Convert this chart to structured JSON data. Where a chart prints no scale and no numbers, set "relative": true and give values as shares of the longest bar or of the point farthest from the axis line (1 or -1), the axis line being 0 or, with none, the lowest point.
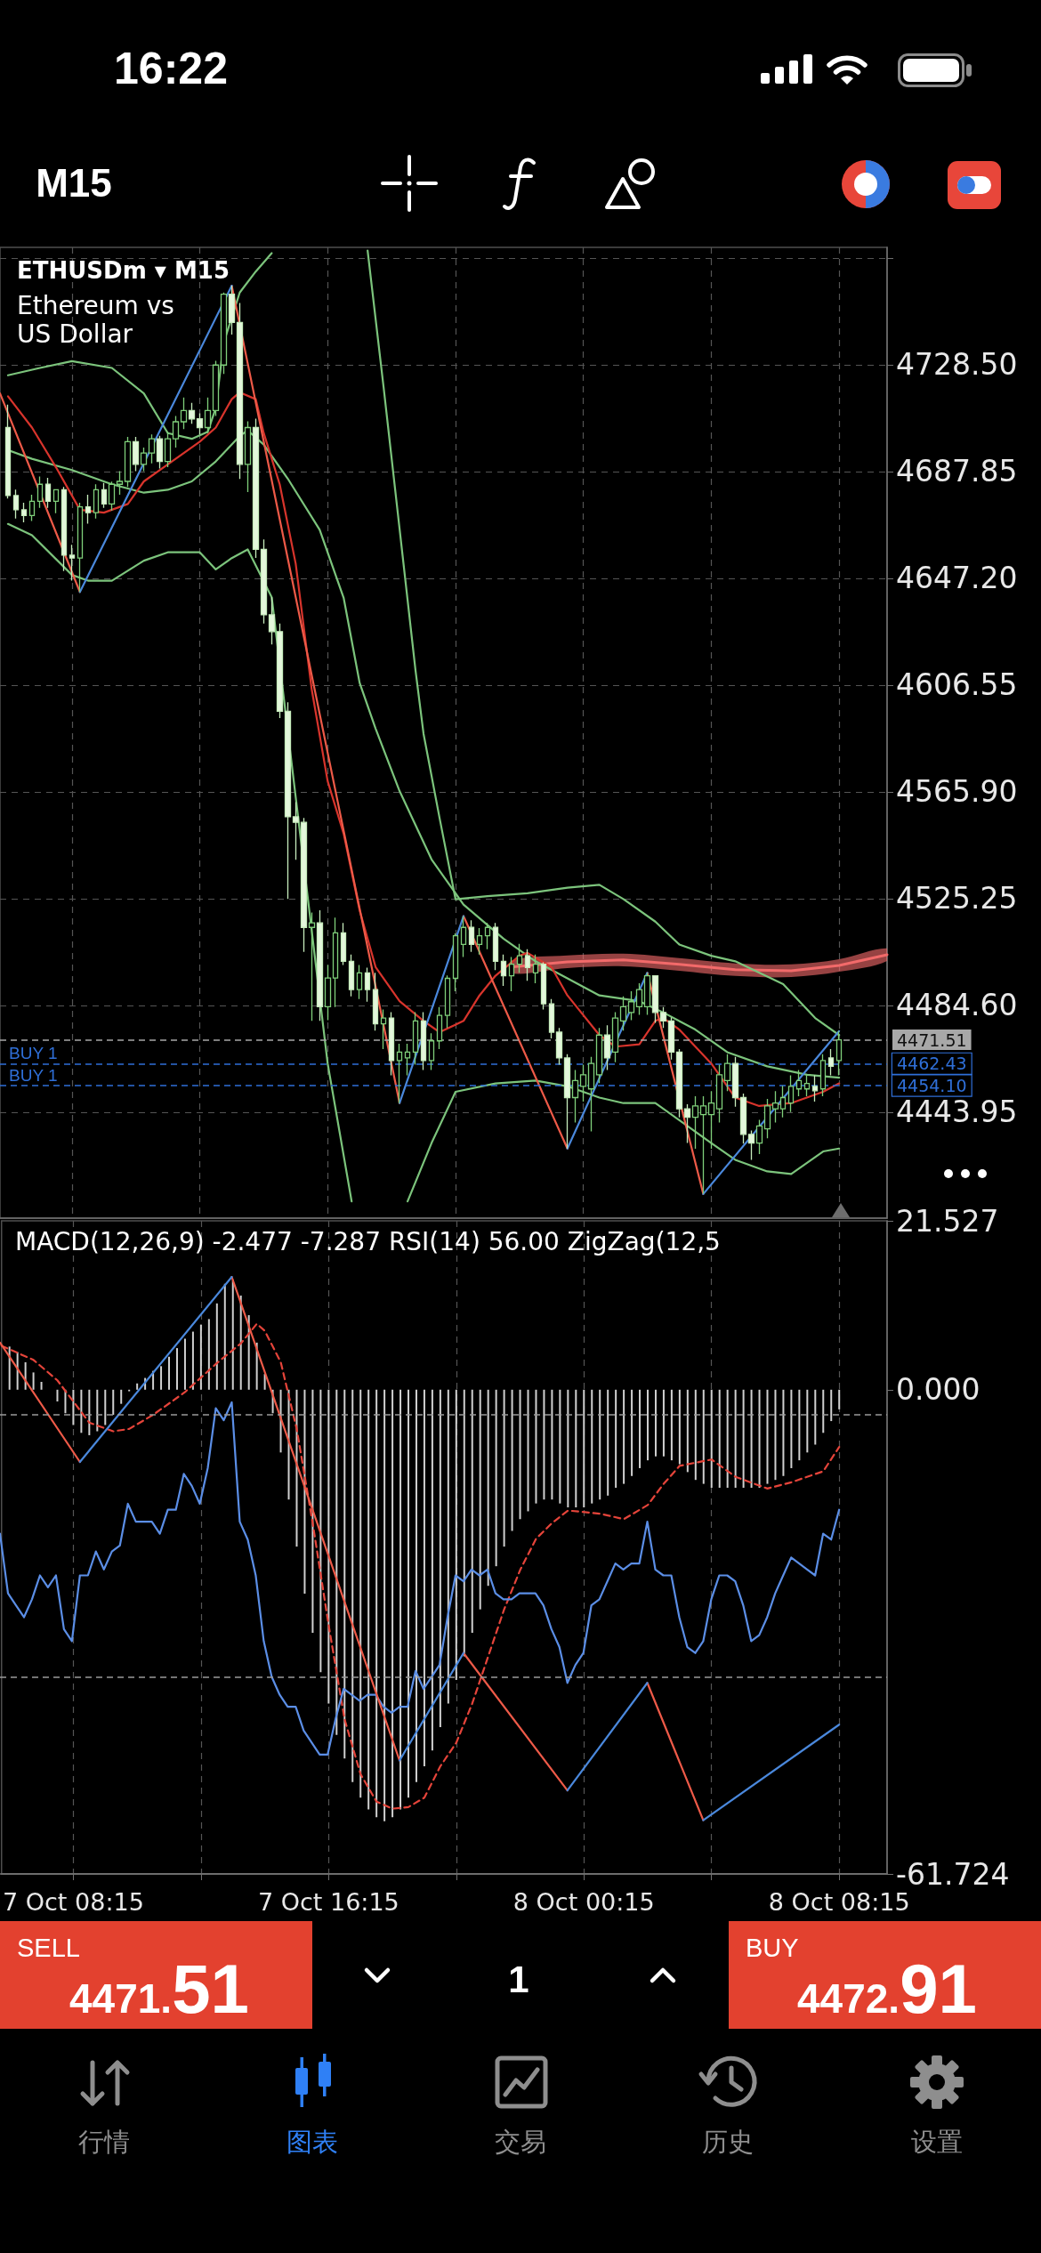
{
  "chart_data": [
    {
      "type": "candlestick",
      "title": "ETHUSDm ▾ M15",
      "subtitle": "Ethereum vs US Dollar",
      "x": [
        "--10-07T06:15",
        "--10-07T06:30",
        "--10-07T06:45",
        "--10-07T07:00",
        "--10-07T07:15",
        "--10-07T07:30",
        "--10-07T07:45",
        "--10-07T08:00",
        "--10-07T08:15",
        "--10-07T08:30",
        "--10-07T08:45",
        "--10-07T09:00",
        "--10-07T09:15",
        "--10-07T09:30",
        "--10-07T09:45",
        "--10-07T10:00",
        "--10-07T10:15",
        "--10-07T10:30",
        "--10-07T10:45",
        "--10-07T11:00",
        "--10-07T11:15",
        "--10-07T11:30",
        "--10-07T11:45",
        "--10-07T12:00",
        "--10-07T12:15",
        "--10-07T12:30",
        "--10-07T12:45",
        "--10-07T13:00",
        "--10-07T13:15",
        "--10-07T13:30",
        "--10-07T13:45",
        "--10-07T14:00",
        "--10-07T14:15",
        "--10-07T14:30",
        "--10-07T14:45",
        "--10-07T15:00",
        "--10-07T15:15",
        "--10-07T15:30",
        "--10-07T15:45",
        "--10-07T16:00",
        "--10-07T16:15",
        "--10-07T16:30",
        "--10-07T16:45",
        "--10-07T17:00",
        "--10-07T17:15",
        "--10-07T17:30",
        "--10-07T17:45",
        "--10-07T18:00",
        "--10-07T18:15",
        "--10-07T18:30",
        "--10-07T18:45",
        "--10-07T19:00",
        "--10-07T19:15",
        "--10-07T19:30",
        "--10-07T19:45",
        "--10-07T20:00",
        "--10-07T20:15",
        "--10-07T20:30",
        "--10-07T20:45",
        "--10-07T21:00",
        "--10-07T21:15",
        "--10-07T21:30",
        "--10-07T21:45",
        "--10-07T22:00",
        "--10-07T22:15",
        "--10-07T22:30",
        "--10-07T22:45",
        "--10-07T23:00",
        "--10-07T23:15",
        "--10-07T23:30",
        "--10-07T23:45",
        "--10-08T00:00",
        "--10-08T00:15",
        "--10-08T00:30",
        "--10-08T00:45",
        "--10-08T01:00",
        "--10-08T01:15",
        "--10-08T01:30",
        "--10-08T01:45",
        "--10-08T02:00",
        "--10-08T02:15",
        "--10-08T02:30",
        "--10-08T02:45",
        "--10-08T03:00",
        "--10-08T03:15",
        "--10-08T03:30",
        "--10-08T03:45",
        "--10-08T04:00",
        "--10-08T04:15",
        "--10-08T04:30",
        "--10-08T04:45",
        "--10-08T05:00",
        "--10-08T05:15",
        "--10-08T05:30",
        "--10-08T05:45",
        "--10-08T06:00",
        "--10-08T06:15",
        "--10-08T06:30",
        "--10-08T06:45",
        "--10-08T07:00",
        "--10-08T07:15",
        "--10-08T07:30",
        "--10-08T07:45",
        "--10-08T08:00",
        "--10-08T08:15"
      ],
      "ohlc": [
        [
          4704.6,
          4713.3,
          4677.6,
          4678.7
        ],
        [
          4678.7,
          4681.0,
          4670.0,
          4673.3
        ],
        [
          4673.3,
          4676.0,
          4668.5,
          4671.1
        ],
        [
          4671.1,
          4679.0,
          4669.0,
          4676.5
        ],
        [
          4676.5,
          4686.0,
          4674.0,
          4683.0
        ],
        [
          4683.0,
          4685.5,
          4674.0,
          4676.5
        ],
        [
          4676.5,
          4681.0,
          4672.0,
          4680.9
        ],
        [
          4680.9,
          4682.0,
          4650.0,
          4656.0
        ],
        [
          4656.0,
          4660.0,
          4646.3,
          4654.9
        ],
        [
          4654.9,
          4676.0,
          4642.0,
          4674.4
        ],
        [
          4674.4,
          4679.0,
          4668.0,
          4672.2
        ],
        [
          4672.2,
          4683.0,
          4670.0,
          4680.9
        ],
        [
          4680.9,
          4683.5,
          4674.0,
          4675.5
        ],
        [
          4675.5,
          4684.0,
          4673.0,
          4683.0
        ],
        [
          4683.0,
          4688.0,
          4679.0,
          4684.1
        ],
        [
          4684.1,
          4701.0,
          4682.0,
          4699.2
        ],
        [
          4699.2,
          4701.0,
          4688.0,
          4690.6
        ],
        [
          4690.6,
          4697.0,
          4688.0,
          4694.9
        ],
        [
          4694.9,
          4702.0,
          4691.0,
          4700.3
        ],
        [
          4700.3,
          4701.5,
          4689.0,
          4691.7
        ],
        [
          4691.7,
          4703.0,
          4689.5,
          4700.3
        ],
        [
          4700.3,
          4709.0,
          4697.0,
          4706.8
        ],
        [
          4706.8,
          4716.0,
          4704.0,
          4711.1
        ],
        [
          4711.1,
          4714.0,
          4706.0,
          4707.9
        ],
        [
          4707.9,
          4710.0,
          4702.0,
          4704.6
        ],
        [
          4704.6,
          4716.0,
          4702.5,
          4711.1
        ],
        [
          4711.1,
          4730.0,
          4709.0,
          4728.4
        ],
        [
          4728.4,
          4756.0,
          4725.0,
          4755.4
        ],
        [
          4755.4,
          4758.6,
          4740.0,
          4744.6
        ],
        [
          4744.6,
          4752.0,
          4685.0,
          4690.6
        ],
        [
          4690.6,
          4707.0,
          4680.0,
          4704.6
        ],
        [
          4704.6,
          4708.0,
          4655.0,
          4658.2
        ],
        [
          4658.2,
          4662.0,
          4630.0,
          4633.3
        ],
        [
          4633.3,
          4640.0,
          4622.0,
          4626.9
        ],
        [
          4626.9,
          4630.0,
          4594.0,
          4596.6
        ],
        [
          4596.6,
          4600.0,
          4525.1,
          4556.4
        ],
        [
          4556.4,
          4562.0,
          4540.0,
          4554.3
        ],
        [
          4554.3,
          4556.0,
          4505.0,
          4514.3
        ],
        [
          4514.3,
          4520.0,
          4478.7,
          4516.0
        ],
        [
          4516.0,
          4520.8,
          4478.7,
          4484.1
        ],
        [
          4484.1,
          4500.0,
          4479.0,
          4495.0
        ],
        [
          4495.0,
          4518.0,
          4484.0,
          4512.2
        ],
        [
          4512.2,
          4516.0,
          4500.0,
          4501.4
        ],
        [
          4501.4,
          4504.0,
          4488.0,
          4490.6
        ],
        [
          4490.6,
          4500.0,
          4487.0,
          4497.0
        ],
        [
          4497.0,
          4499.0,
          4486.0,
          4490.6
        ],
        [
          4490.6,
          4497.0,
          4475.0,
          4477.6
        ],
        [
          4477.6,
          4483.0,
          4468.0,
          4479.8
        ],
        [
          4479.8,
          4482.0,
          4458.0,
          4463.6
        ],
        [
          4463.6,
          4470.0,
          4447.4,
          4466.8
        ],
        [
          4464.6,
          4470.0,
          4458.0,
          4466.8
        ],
        [
          4466.8,
          4482.0,
          4462.0,
          4478.7
        ],
        [
          4478.7,
          4482.0,
          4460.0,
          4463.6
        ],
        [
          4463.6,
          4474.0,
          4460.0,
          4471.1
        ],
        [
          4471.1,
          4484.0,
          4468.0,
          4480.8
        ],
        [
          4480.8,
          4496.0,
          4476.0,
          4494.9
        ],
        [
          4494.9,
          4512.0,
          4490.0,
          4511.1
        ],
        [
          4507.8,
          4518.6,
          4503.0,
          4514.3
        ],
        [
          4514.3,
          4517.0,
          4505.0,
          4507.8
        ],
        [
          4507.8,
          4514.0,
          4504.0,
          4511.1
        ],
        [
          4511.1,
          4516.0,
          4506.0,
          4514.3
        ],
        [
          4514.3,
          4516.0,
          4498.0,
          4501.4
        ],
        [
          4501.4,
          4504.0,
          4492.0,
          4495.9
        ],
        [
          4495.9,
          4503.0,
          4490.0,
          4500.3
        ],
        [
          4500.3,
          4508.0,
          4497.0,
          4503.5
        ],
        [
          4503.5,
          4506.0,
          4494.0,
          4499.0
        ],
        [
          4497.0,
          4504.0,
          4493.0,
          4500.3
        ],
        [
          4500.3,
          4501.0,
          4483.0,
          4485.2
        ],
        [
          4485.2,
          4487.0,
          4472.0,
          4474.4
        ],
        [
          4474.4,
          4476.0,
          4462.0,
          4464.6
        ],
        [
          4464.6,
          4466.0,
          4430.1,
          4449.5
        ],
        [
          4449.5,
          4460.0,
          4440.0,
          4456.0
        ],
        [
          4453.8,
          4462.0,
          4448.0,
          4458.2
        ],
        [
          4452.8,
          4465.0,
          4436.6,
          4462.5
        ],
        [
          4458.2,
          4476.0,
          4455.0,
          4473.3
        ],
        [
          4473.3,
          4477.0,
          4460.0,
          4464.6
        ],
        [
          4466.8,
          4482.0,
          4463.0,
          4479.8
        ],
        [
          4478.7,
          4488.0,
          4475.0,
          4484.1
        ],
        [
          4481.9,
          4490.0,
          4479.0,
          4486.0
        ],
        [
          4484.1,
          4493.0,
          4481.0,
          4490.6
        ],
        [
          4484.1,
          4497.0,
          4481.0,
          4495.9
        ],
        [
          4495.9,
          4496.0,
          4478.0,
          4481.9
        ],
        [
          4481.9,
          4484.0,
          4476.0,
          4478.7
        ],
        [
          4478.7,
          4480.0,
          4464.0,
          4466.8
        ],
        [
          4466.8,
          4468.0,
          4442.0,
          4445.2
        ],
        [
          4445.2,
          4447.0,
          4432.2,
          4442.0
        ],
        [
          4442.0,
          4450.0,
          4430.0,
          4446.3
        ],
        [
          4443.0,
          4450.0,
          4412.8,
          4446.3
        ],
        [
          4443.0,
          4452.0,
          4430.0,
          4447.4
        ],
        [
          4445.2,
          4462.0,
          4440.0,
          4458.2
        ],
        [
          4456.0,
          4466.0,
          4452.0,
          4462.5
        ],
        [
          4462.5,
          4465.0,
          4446.0,
          4449.5
        ],
        [
          4449.5,
          4451.0,
          4432.0,
          4435.5
        ],
        [
          4435.5,
          4437.0,
          4425.8,
          4432.2
        ],
        [
          4432.2,
          4441.0,
          4428.0,
          4438.7
        ],
        [
          4437.6,
          4449.0,
          4434.0,
          4446.3
        ],
        [
          4445.2,
          4452.0,
          4440.0,
          4447.4
        ],
        [
          4445.2,
          4454.0,
          4442.0,
          4449.5
        ],
        [
          4447.4,
          4458.0,
          4444.0,
          4453.8
        ],
        [
          4452.8,
          4460.0,
          4450.0,
          4456.0
        ],
        [
          4452.8,
          4458.0,
          4450.0,
          4454.9
        ],
        [
          4453.8,
          4458.0,
          4448.0,
          4452.1
        ],
        [
          4452.8,
          4466.0,
          4450.0,
          4463.6
        ],
        [
          4464.6,
          4468.0,
          4458.0,
          4461.4
        ],
        [
          4463.6,
          4474.8,
          4458.0,
          4471.51
        ]
      ],
      "series": [
        {
          "type": "line",
          "color": "#7cc47c",
          "x": [
            "--10-07T06:15",
            "--10-07T07:15",
            "--10-07T08:15",
            "--10-07T09:30",
            "--10-07T10:30",
            "--10-07T11:15",
            "--10-07T12:00",
            "--10-07T12:30",
            "--10-07T12:45",
            "--10-07T13:00",
            "--10-07T13:30",
            "--10-07T14:00",
            "--10-07T14:30",
            "--10-07T16:00",
            "--10-07T17:30",
            "--10-07T18:00",
            "--10-07T18:30",
            "--10-07T19:00",
            "--10-07T19:15",
            "--10-07T19:45",
            "--10-07T20:15",
            "--10-07T21:15",
            "--10-07T22:30",
            "--10-07T23:45",
            "--10-08T00:45",
            "--10-08T01:30",
            "--10-08T02:30",
            "--10-08T03:15",
            "--10-08T04:15",
            "--10-08T05:00",
            "--10-08T06:30",
            "--10-08T07:30",
            "--10-08T08:15"
          ],
          "values": [
            4724.5,
            4727.3,
            4729.9,
            4727.3,
            4717.6,
            4702.5,
            4700.3,
            4703.0,
            4712.0,
            4737.0,
            4756.0,
            4764.0,
            4771.0,
            null,
            4772.0,
            4720.0,
            4666.0,
            4612.0,
            4588.0,
            4556.0,
            4525.0,
            4526.2,
            4527.3,
            4529.4,
            4530.5,
            4525.1,
            4516.5,
            4507.8,
            4503.5,
            4501.4,
            4492.7,
            4479.8,
            4473.3
          ]
        },
        {
          "type": "line",
          "color": "#7cc47c",
          "x": [
            "--10-07T06:15",
            "--10-07T07:00",
            "--10-07T08:15",
            "--10-07T09:30",
            "--10-07T10:30",
            "--10-07T11:15",
            "--10-07T12:00",
            "--10-07T12:45",
            "--10-07T13:30",
            "--10-07T13:45",
            "--10-07T14:15",
            "--10-07T15:00",
            "--10-07T16:00",
            "--10-07T16:45",
            "--10-07T17:15",
            "--10-07T17:45",
            "--10-07T18:30",
            "--10-07T19:30",
            "--10-07T20:30",
            "--10-07T21:45",
            "--10-07T22:45",
            "--10-07T23:45",
            "--10-08T00:45",
            "--10-08T02:00",
            "--10-08T02:45",
            "--10-08T03:45",
            "--10-08T04:45",
            "--10-08T06:00",
            "--10-08T07:15",
            "--10-08T08:15"
          ],
          "values": [
            4696.0,
            4692.7,
            4688.4,
            4683.0,
            4679.8,
            4680.9,
            4684.1,
            4691.7,
            4701.4,
            4703.5,
            4698.1,
            4685.2,
            4665.7,
            4639.8,
            4607.4,
            4590.0,
            4566.2,
            4540.2,
            4523.0,
            4510.0,
            4501.4,
            4494.9,
            4488.4,
            4486.2,
            4481.9,
            4475.4,
            4466.8,
            4461.4,
            4458.2,
            4457.1
          ]
        },
        {
          "type": "line",
          "color": "#7cc47c",
          "x": [
            "--10-07T06:15",
            "--10-07T07:00",
            "--10-07T08:15",
            "--10-07T08:45",
            "--10-07T09:30",
            "--10-07T10:30",
            "--10-07T11:15",
            "--10-07T12:15",
            "--10-07T12:45",
            "--10-07T13:15",
            "--10-07T13:45",
            "--10-07T14:30",
            "--10-07T16:15",
            "--10-07T17:00",
            "--10-07T17:45",
            "--10-07T18:45",
            "--10-07T19:30",
            "--10-07T20:15",
            "--10-07T21:30",
            "--10-07T22:45",
            "--10-07T23:45",
            "--10-08T00:45",
            "--10-08T01:30",
            "--10-08T02:30",
            "--10-08T03:15",
            "--10-08T04:15",
            "--10-08T05:00",
            "--10-08T06:00",
            "--10-08T06:45",
            "--10-08T07:45",
            "--10-08T08:15"
          ],
          "values": [
            4667.9,
            4663.6,
            4648.5,
            4646.3,
            4646.3,
            4653.9,
            4657.1,
            4657.1,
            4650.6,
            4654.9,
            4658.2,
            4640.0,
            4462.5,
            4410.0,
            null,
            4410.0,
            4432.2,
            4451.7,
            4454.9,
            4456.0,
            4453.8,
            4449.5,
            4447.4,
            4447.4,
            4440.9,
            4432.2,
            4425.8,
            4421.4,
            4420.4,
            4429.0,
            4430.1
          ]
        },
        {
          "type": "line",
          "color": "#d8342c",
          "x": [
            "--10-07T06:15",
            "--10-07T07:00",
            "--10-07T07:45",
            "--10-07T08:30",
            "--10-07T09:15",
            "--10-07T10:00",
            "--10-07T10:30",
            "--10-07T11:15",
            "--10-07T12:15",
            "--10-07T12:45",
            "--10-07T13:15",
            "--10-07T13:30",
            "--10-07T14:00",
            "--10-07T14:15",
            "--10-07T14:45",
            "--10-07T15:15",
            "--10-07T15:45",
            "--10-07T16:15",
            "--10-07T16:45",
            "--10-07T17:15",
            "--10-07T17:45",
            "--10-07T18:30",
            "--10-07T19:15",
            "--10-07T19:45",
            "--10-07T20:30",
            "--10-07T21:00",
            "--10-07T21:30",
            "--10-07T22:15",
            "--10-07T22:30",
            "--10-07T23:15",
            "--10-07T23:45",
            "--10-08T00:45",
            "--10-08T01:15",
            "--10-08T02:00",
            "--10-08T02:30",
            "--10-08T02:45",
            "--10-08T03:15",
            "--10-08T04:15",
            "--10-08T05:00",
            "--10-08T05:45",
            "--10-08T06:45",
            "--10-08T07:45",
            "--10-08T08:15"
          ],
          "values": [
            4716.5,
            4704.6,
            4689.5,
            4673.3,
            4672.2,
            4675.5,
            4684.1,
            4690.6,
            4699.2,
            4704.6,
            4715.4,
            4718.0,
            4715.4,
            4702.5,
            4683.0,
            4652.8,
            4605.0,
            4570.0,
            4550.0,
            4520.8,
            4499.2,
            4486.2,
            4478.7,
            4474.4,
            4478.7,
            4488.4,
            4495.9,
            4503.5,
            4504.6,
            4499.2,
            4488.4,
            4473.3,
            4468.9,
            4469.8,
            4478.7,
            4479.8,
            4475.4,
            4462.5,
            4449.5,
            4446.3,
            4447.4,
            4451.7,
            4454.9
          ]
        },
        {
          "type": "line",
          "color": "#ee5a48",
          "x": [
            "--10-07T06:00",
            "--10-07T08:30",
            "--10-07T10:45",
            "--10-07T13:15",
            "--10-07T18:30",
            "--10-07T19:30",
            "--10-07T20:30",
            "--10-07T23:45",
            "--10-08T01:00",
            "--10-08T02:15",
            "--10-08T04:00"
          ],
          "values": [
            4717.6,
            4642.0,
            null,
            4758.6,
            4447.4,
            null,
            4518.6,
            4430.1,
            null,
            4497.0,
            4412.8
          ]
        },
        {
          "type": "line",
          "color": "#4a88dc",
          "x": [
            "--10-07T08:30",
            "--10-07T13:15",
            "--10-07T15:45",
            "--10-07T18:30",
            "--10-07T20:30",
            "--10-07T22:00",
            "--10-07T23:45",
            "--10-08T02:15",
            "--10-08T03:15",
            "--10-08T04:00",
            "--10-08T08:15"
          ],
          "values": [
            4642.0,
            4758.6,
            null,
            4447.4,
            4518.6,
            null,
            4430.1,
            4497.0,
            null,
            4412.8,
            4474.8
          ]
        },
        {
          "type": "line",
          "color": "#f26a6a",
          "x": [
            "--10-07T22:00",
            "--10-07T23:45",
            "--10-08T01:30",
            "--10-08T03:15",
            "--10-08T05:00",
            "--10-08T06:45",
            "--10-08T08:15",
            "--10-08T09:45"
          ],
          "values": [
            4499.2,
            4501.2,
            4501.9,
            4500.2,
            4498.2,
            4497.8,
            4499.8,
            4503.9
          ],
          "lower": [
            4496.8,
            4498.8,
            4499.5,
            4497.8,
            4495.8,
            4495.4,
            4497.4,
            4501.5
          ],
          "upper": [
            4501.6,
            4503.6,
            4504.3,
            4502.6,
            4500.6,
            4500.2,
            4502.2,
            4506.3
          ]
        }
      ],
      "xlim": [
        "--10-07T06:00",
        "--10-08T09:45"
      ],
      "xticks": [
        {
          "value": "--10-07T08:15",
          "label": null
        },
        {
          "value": "--10-07T12:15",
          "label": null
        },
        {
          "value": "--10-07T16:15",
          "label": null
        },
        {
          "value": "--10-07T20:15",
          "label": null
        },
        {
          "value": "--10-08T00:15",
          "label": null
        },
        {
          "value": "--10-08T04:15",
          "label": null
        },
        {
          "value": "--10-08T08:15",
          "label": null
        }
      ],
      "ylim": [
        4403.6,
        4773.2
      ],
      "yticks": [
        {
          "value": 4769.15,
          "label": null
        },
        {
          "value": 4728.5,
          "label": "4728.50"
        },
        4687.85,
        {
          "value": 4647.2,
          "label": "4647.20"
        },
        4606.55,
        {
          "value": 4565.9,
          "label": "4565.90"
        },
        4525.25,
        {
          "value": 4484.6,
          "label": "4484.60"
        },
        4443.95
      ],
      "grid": true,
      "tick_labels": "y",
      "marker": "none",
      "ref_lines": [
        {
          "axis": "y",
          "value": 4471.51,
          "label": "4471.51",
          "color": "#a8a8a8",
          "line_style": "dashed"
        },
        {
          "axis": "y",
          "value": 4462.43,
          "label": "4462.43",
          "color": "#2f6fd8",
          "line_style": "dashed"
        },
        {
          "axis": "y",
          "value": 4454.1,
          "label": "4454.10",
          "color": "#2f6fd8",
          "line_style": "dashed"
        }
      ],
      "annotations": [
        {
          "text": "BUY 1",
          "x": "--10-07T06:00",
          "y": 4462.43
        },
        {
          "text": "BUY 1",
          "x": "--10-07T06:00",
          "y": 4454.1
        }
      ]
    },
    {
      "type": "bar",
      "title": "MACD(12,26,9) -2.477 -7.287 RSI(14) 56.00 ZigZag(12,5",
      "x": [
        "--10-07T06:15",
        "--10-07T06:30",
        "--10-07T06:45",
        "--10-07T07:00",
        "--10-07T07:15",
        "--10-07T07:30",
        "--10-07T07:45",
        "--10-07T08:00",
        "--10-07T08:15",
        "--10-07T08:30",
        "--10-07T08:45",
        "--10-07T09:00",
        "--10-07T09:15",
        "--10-07T09:30",
        "--10-07T09:45",
        "--10-07T10:00",
        "--10-07T10:15",
        "--10-07T10:30",
        "--10-07T10:45",
        "--10-07T11:00",
        "--10-07T11:15",
        "--10-07T11:30",
        "--10-07T11:45",
        "--10-07T12:00",
        "--10-07T12:15",
        "--10-07T12:30",
        "--10-07T12:45",
        "--10-07T13:00",
        "--10-07T13:15",
        "--10-07T13:30",
        "--10-07T13:45",
        "--10-07T14:00",
        "--10-07T14:15",
        "--10-07T14:30",
        "--10-07T14:45",
        "--10-07T15:00",
        "--10-07T15:15",
        "--10-07T15:30",
        "--10-07T15:45",
        "--10-07T16:00",
        "--10-07T16:15",
        "--10-07T16:30",
        "--10-07T16:45",
        "--10-07T17:00",
        "--10-07T17:15",
        "--10-07T17:30",
        "--10-07T17:45",
        "--10-07T18:00",
        "--10-07T18:15",
        "--10-07T18:30",
        "--10-07T18:45",
        "--10-07T19:00",
        "--10-07T19:15",
        "--10-07T19:30",
        "--10-07T19:45",
        "--10-07T20:00",
        "--10-07T20:15",
        "--10-07T20:30",
        "--10-07T20:45",
        "--10-07T21:00",
        "--10-07T21:15",
        "--10-07T21:30",
        "--10-07T21:45",
        "--10-07T22:00",
        "--10-07T22:15",
        "--10-07T22:30",
        "--10-07T22:45",
        "--10-07T23:00",
        "--10-07T23:15",
        "--10-07T23:30",
        "--10-07T23:45",
        "--10-08T00:00",
        "--10-08T00:15",
        "--10-08T00:30",
        "--10-08T00:45",
        "--10-08T01:00",
        "--10-08T01:15",
        "--10-08T01:30",
        "--10-08T01:45",
        "--10-08T02:00",
        "--10-08T02:15",
        "--10-08T02:30",
        "--10-08T02:45",
        "--10-08T03:00",
        "--10-08T03:15",
        "--10-08T03:30",
        "--10-08T03:45",
        "--10-08T04:00",
        "--10-08T04:15",
        "--10-08T04:30",
        "--10-08T04:45",
        "--10-08T05:00",
        "--10-08T05:15",
        "--10-08T05:30",
        "--10-08T05:45",
        "--10-08T06:00",
        "--10-08T06:15",
        "--10-08T06:30",
        "--10-08T06:45",
        "--10-08T07:00",
        "--10-08T07:15",
        "--10-08T07:30",
        "--10-08T07:45",
        "--10-08T08:00",
        "--10-08T08:15"
      ],
      "series": [
        {
          "color": "#d0d0d0",
          "values": [
            5.5,
            4.8,
            3.5,
            2.2,
            1.0,
            0.0,
            -1.5,
            -3.0,
            -4.5,
            -5.5,
            -5.8,
            -5.3,
            -4.5,
            -3.2,
            -1.8,
            -0.2,
            0.8,
            1.5,
            2.4,
            3.0,
            4.2,
            5.3,
            6.5,
            7.4,
            8.3,
            9.0,
            11.0,
            13.5,
            14.0,
            12.0,
            9.5,
            6.0,
            2.0,
            -3.0,
            -8.0,
            -14.0,
            -20.0,
            -26.0,
            -31.0,
            -36.0,
            -40.0,
            -44.0,
            -47.0,
            -50.0,
            -52.0,
            -53.5,
            -54.5,
            -55.0,
            -54.5,
            -53.5,
            -52.0,
            -50.0,
            -48.0,
            -46.0,
            -43.0,
            -40.0,
            -37.0,
            -34.0,
            -31.0,
            -28.0,
            -25.0,
            -22.5,
            -20.0,
            -18.0,
            -16.5,
            -15.5,
            -14.5,
            -14.0,
            -14.0,
            -14.5,
            -15.0,
            -15.0,
            -15.0,
            -14.5,
            -14.0,
            -13.5,
            -12.5,
            -12.0,
            -11.0,
            -10.0,
            -9.0,
            -8.5,
            -8.5,
            -9.0,
            -9.5,
            -10.5,
            -11.5,
            -12.0,
            -12.5,
            -12.5,
            -12.5,
            -12.5,
            -12.5,
            -12.5,
            -12.5,
            -12.0,
            -11.5,
            -11.0,
            -10.0,
            -9.0,
            -8.0,
            -7.0,
            -5.5,
            -4.0,
            -2.5
          ]
        },
        {
          "type": "line",
          "color": "#e5443a",
          "line_style": "dashed",
          "x": [
            "--10-07T06:00",
            "--10-07T07:00",
            "--10-07T07:45",
            "--10-07T08:45",
            "--10-07T09:30",
            "--10-07T10:00",
            "--10-07T10:45",
            "--10-07T11:45",
            "--10-07T12:45",
            "--10-07T13:30",
            "--10-07T14:00",
            "--10-07T14:15",
            "--10-07T14:45",
            "--10-07T15:15",
            "--10-07T15:45",
            "--10-07T16:15",
            "--10-07T16:45",
            "--10-07T17:15",
            "--10-07T17:45",
            "--10-07T18:15",
            "--10-07T18:45",
            "--10-07T19:15",
            "--10-07T19:45",
            "--10-07T20:15",
            "--10-07T20:45",
            "--10-07T21:15",
            "--10-07T21:45",
            "--10-07T22:15",
            "--10-07T22:45",
            "--10-07T23:15",
            "--10-07T23:45",
            "--10-08T00:45",
            "--10-08T01:30",
            "--10-08T02:15",
            "--10-08T02:45",
            "--10-08T03:15",
            "--10-08T04:15",
            "--10-08T05:00",
            "--10-08T06:00",
            "--10-08T06:45",
            "--10-08T07:45",
            "--10-08T08:15"
          ],
          "values": [
            5.6,
            3.8,
            1.2,
            -4.2,
            -5.3,
            -5.0,
            -3.2,
            -0.3,
            3.4,
            5.9,
            8.4,
            7.5,
            3.5,
            -5.0,
            -17.0,
            -30.0,
            -42.0,
            -49.0,
            -52.5,
            -53.4,
            -53.2,
            -52.0,
            -48.0,
            -45.0,
            -40.0,
            -34.0,
            -28.0,
            -23.0,
            -19.0,
            -17.0,
            -15.4,
            -15.8,
            -16.5,
            -14.7,
            -12.0,
            -9.7,
            -8.9,
            -11.1,
            -12.6,
            -11.8,
            -10.4,
            -7.3
          ]
        }
      ],
      "xlim": [
        "--10-07T06:00",
        "--10-08T09:45"
      ],
      "xticks": [
        {
          "value": "--10-07T08:15",
          "label": "7 Oct 08:15"
        },
        {
          "value": "--10-07T12:15",
          "label": null
        },
        {
          "value": "--10-07T16:15",
          "label": "7 Oct 16:15"
        },
        {
          "value": "--10-07T20:15",
          "label": null
        },
        {
          "value": "--10-08T00:15",
          "label": "8 Oct 00:15"
        },
        {
          "value": "--10-08T04:15",
          "label": null
        },
        {
          "value": "--10-08T08:15",
          "label": "8 Oct 08:15"
        }
      ],
      "ylim": [
        -61.724,
        21.527
      ],
      "yticks": [
        21.527,
        {
          "value": 0,
          "label": "0.000"
        },
        -61.724
      ],
      "grid": "x",
      "marker": "none"
    },
    {
      "type": "line",
      "relative": true,
      "marker": "none",
      "tick_labels": false,
      "x": [
        "--10-07T06:00",
        "--10-07T06:15",
        "--10-07T06:30",
        "--10-07T06:45",
        "--10-07T07:00",
        "--10-07T07:15",
        "--10-07T07:30",
        "--10-07T07:45",
        "--10-07T08:00",
        "--10-07T08:15",
        "--10-07T08:30",
        "--10-07T08:45",
        "--10-07T09:00",
        "--10-07T09:15",
        "--10-07T09:30",
        "--10-07T09:45",
        "--10-07T10:00",
        "--10-07T10:15",
        "--10-07T10:30",
        "--10-07T10:45",
        "--10-07T11:00",
        "--10-07T11:15",
        "--10-07T11:30",
        "--10-07T11:45",
        "--10-07T12:00",
        "--10-07T12:15",
        "--10-07T12:30",
        "--10-07T12:45",
        "--10-07T13:00",
        "--10-07T13:15",
        "--10-07T13:30",
        "--10-07T13:45",
        "--10-07T14:00",
        "--10-07T14:15",
        "--10-07T14:30",
        "--10-07T14:45",
        "--10-07T15:00",
        "--10-07T15:15",
        "--10-07T15:30",
        "--10-07T15:45",
        "--10-07T16:00",
        "--10-07T16:15",
        "--10-07T16:30",
        "--10-07T16:45",
        "--10-07T17:00",
        "--10-07T17:15",
        "--10-07T17:30",
        "--10-07T17:45",
        "--10-07T18:00",
        "--10-07T18:15",
        "--10-07T18:30",
        "--10-07T18:45",
        "--10-07T19:00",
        "--10-07T19:15",
        "--10-07T19:30",
        "--10-07T19:45",
        "--10-07T20:00",
        "--10-07T20:15",
        "--10-07T20:30",
        "--10-07T20:45",
        "--10-07T21:00",
        "--10-07T21:15",
        "--10-07T21:30",
        "--10-07T21:45",
        "--10-07T22:00",
        "--10-07T22:15",
        "--10-07T22:30",
        "--10-07T22:45",
        "--10-07T23:00",
        "--10-07T23:15",
        "--10-07T23:30",
        "--10-07T23:45",
        "--10-08T00:00",
        "--10-08T00:15",
        "--10-08T00:30",
        "--10-08T00:45",
        "--10-08T01:00",
        "--10-08T01:15",
        "--10-08T01:30",
        "--10-08T01:45",
        "--10-08T02:00",
        "--10-08T02:15",
        "--10-08T02:30",
        "--10-08T02:45",
        "--10-08T03:00",
        "--10-08T03:15",
        "--10-08T03:30",
        "--10-08T03:45",
        "--10-08T04:00",
        "--10-08T04:15",
        "--10-08T04:30",
        "--10-08T04:45",
        "--10-08T05:00",
        "--10-08T05:15",
        "--10-08T05:30",
        "--10-08T05:45",
        "--10-08T06:00",
        "--10-08T06:15",
        "--10-08T06:30",
        "--10-08T06:45",
        "--10-08T07:00",
        "--10-08T07:15",
        "--10-08T07:30",
        "--10-08T07:45",
        "--10-08T08:00",
        "--10-08T08:15"
      ],
      "series": [
        {
          "color": "#5b8ee6",
          "values": [
            0.57,
            0.47,
            0.45,
            0.43,
            0.46,
            0.5,
            0.48,
            0.5,
            0.41,
            0.39,
            0.5,
            0.5,
            0.54,
            0.51,
            0.54,
            0.55,
            0.62,
            0.59,
            0.59,
            0.59,
            0.57,
            0.61,
            0.61,
            0.67,
            0.65,
            0.62,
            0.68,
            0.78,
            0.76,
            0.79,
            0.59,
            0.56,
            0.5,
            0.39,
            0.33,
            0.3,
            0.28,
            0.28,
            0.24,
            0.22,
            0.2,
            0.2,
            0.26,
            0.31,
            0.3,
            0.29,
            0.3,
            0.3,
            0.28,
            0.27,
            0.28,
            0.28,
            0.34,
            0.31,
            0.33,
            0.35,
            0.43,
            0.5,
            0.49,
            0.51,
            0.5,
            0.51,
            0.47,
            0.46,
            0.46,
            0.47,
            0.47,
            0.47,
            0.45,
            0.41,
            0.38,
            0.32,
            0.35,
            0.37,
            0.45,
            0.46,
            0.49,
            0.52,
            0.51,
            0.52,
            0.52,
            0.59,
            0.51,
            0.5,
            0.5,
            0.43,
            0.38,
            0.37,
            0.39,
            0.46,
            0.5,
            0.5,
            0.49,
            0.45,
            0.39,
            0.4,
            0.43,
            0.47,
            0.5,
            0.53,
            0.52,
            0.51,
            0.5,
            0.57,
            0.56,
            0.61
          ]
        },
        {
          "color": "#ee5a48",
          "x": [
            "--10-07T06:00",
            "--10-07T08:30",
            "--10-07T10:45",
            "--10-07T13:15",
            "--10-07T18:30",
            "--10-07T19:30",
            "--10-07T20:30",
            "--10-07T23:45",
            "--10-08T01:00",
            "--10-08T02:15",
            "--10-08T04:00"
          ],
          "values": [
            0.89,
            0.69,
            null,
            1,
            0.19,
            null,
            0.37,
            0.14,
            null,
            0.32,
            0.09
          ]
        },
        {
          "color": "#4a88dc",
          "x": [
            "--10-07T08:30",
            "--10-07T13:15",
            "--10-07T15:45",
            "--10-07T18:30",
            "--10-07T20:30",
            "--10-07T22:00",
            "--10-07T23:45",
            "--10-08T02:15",
            "--10-08T03:15",
            "--10-08T04:00",
            "--10-08T08:15"
          ],
          "values": [
            0.69,
            1,
            null,
            0.19,
            0.37,
            null,
            0.14,
            0.32,
            null,
            0.09,
            0.25
          ]
        }
      ],
      "xlim": [
        "--10-07T06:00",
        "--10-08T09:45"
      ],
      "xticks": [
        {
          "value": "--10-07T08:15",
          "label": null
        },
        {
          "value": "--10-07T12:15",
          "label": null
        },
        {
          "value": "--10-07T16:15",
          "label": null
        },
        {
          "value": "--10-07T20:15",
          "label": null
        },
        {
          "value": "--10-08T00:15",
          "label": null
        },
        {
          "value": "--10-08T04:15",
          "label": null
        },
        {
          "value": "--10-08T08:15",
          "label": null
        }
      ],
      "ref_lines": [
        {
          "axis": "y",
          "value": 0.77,
          "color": "#9a9a9a",
          "line_style": "dashed"
        },
        {
          "axis": "y",
          "value": 0.33,
          "color": "#9a9a9a",
          "line_style": "dashed"
        }
      ]
    },
    {
      "type": "other",
      "annotations": [
        "16:22",
        "M15",
        "SELL",
        "4471.51",
        "1",
        "BUY",
        "4472.91",
        "行情",
        "图表",
        "交易",
        "历史",
        "设置"
      ]
    }
  ]
}
